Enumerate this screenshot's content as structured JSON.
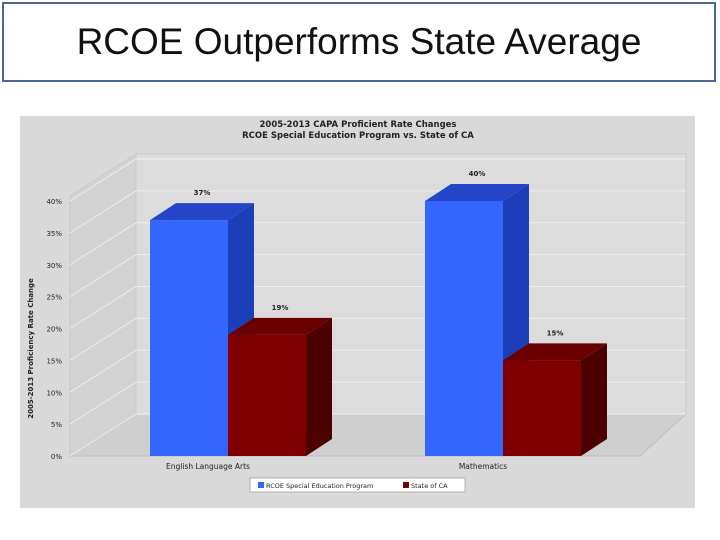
{
  "slide": {
    "title": "RCOE Outperforms State Average"
  },
  "chart_data": {
    "type": "bar",
    "title": "2005-2013 CAPA Proficient Rate Changes",
    "subtitle": "RCOE Special Education Program vs. State of CA",
    "ylabel": "2005-2013 Proficiency Rate Change",
    "xlabel": "",
    "ylim": [
      0,
      40
    ],
    "y_ticks": [
      "0%",
      "5%",
      "10%",
      "15%",
      "20%",
      "25%",
      "30%",
      "35%",
      "40%"
    ],
    "categories": [
      "English Language Arts",
      "Mathematics"
    ],
    "series": [
      {
        "name": "RCOE Special Education Program",
        "values": [
          37,
          40
        ],
        "labels": [
          "37%",
          "40%"
        ],
        "color": "#3366ff",
        "side_color": "#1c3eb8",
        "top_color": "#2545c9"
      },
      {
        "name": "State of CA",
        "values": [
          19,
          15
        ],
        "labels": [
          "19%",
          "15%"
        ],
        "color": "#800000",
        "side_color": "#4d0000",
        "top_color": "#6a0000"
      }
    ],
    "grid": true,
    "legend": "bottom",
    "background": "#d9d9d9"
  }
}
